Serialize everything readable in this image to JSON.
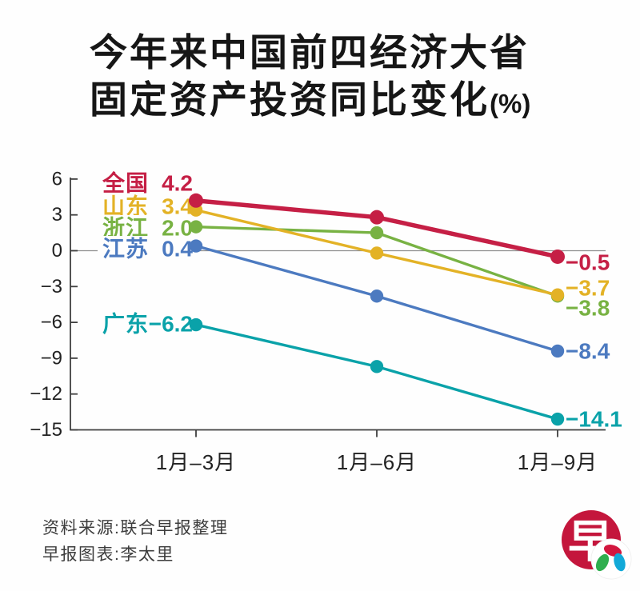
{
  "title": {
    "line1": "今年来中国前四经济大省",
    "line2": "固定资产投资同比变化",
    "unit_suffix": "(%)"
  },
  "chart_data": {
    "type": "line",
    "title": "今年来中国前四经济大省固定资产投资同比变化(%)",
    "categories": [
      "1月–3月",
      "1月–6月",
      "1月–9月"
    ],
    "ylim": [
      -15,
      6
    ],
    "yticks": [
      6,
      3,
      0,
      -3,
      -6,
      -9,
      -12,
      -15
    ],
    "grid": false,
    "legend_position": "inline-left-labels",
    "series": [
      {
        "key": "national",
        "name": "全国",
        "color": "#c51f45",
        "values": [
          4.2,
          2.8,
          -0.5
        ],
        "first_label": "4.2",
        "end_label": "−0.5"
      },
      {
        "key": "shandong",
        "name": "山东",
        "color": "#e3b226",
        "values": [
          3.4,
          -0.2,
          -3.7
        ],
        "first_label": "3.4",
        "end_label": "−3.7"
      },
      {
        "key": "zhejiang",
        "name": "浙江",
        "color": "#78b243",
        "values": [
          2.0,
          1.5,
          -3.8
        ],
        "first_label": "2.0",
        "end_label": "−3.8"
      },
      {
        "key": "jiangsu",
        "name": "江苏",
        "color": "#4c7ac0",
        "values": [
          0.4,
          -3.8,
          -8.4
        ],
        "first_label": "0.4",
        "end_label": "−8.4"
      },
      {
        "key": "guangdong",
        "name": "广东",
        "color": "#0aa2a9",
        "values": [
          -6.2,
          -9.7,
          -14.1
        ],
        "first_label": "−6.2",
        "end_label": "−14.1"
      }
    ]
  },
  "footer": {
    "source": "资料来源:联合早报整理",
    "credit": "早报图表:李太里"
  },
  "logo": {
    "glyph": "早"
  }
}
